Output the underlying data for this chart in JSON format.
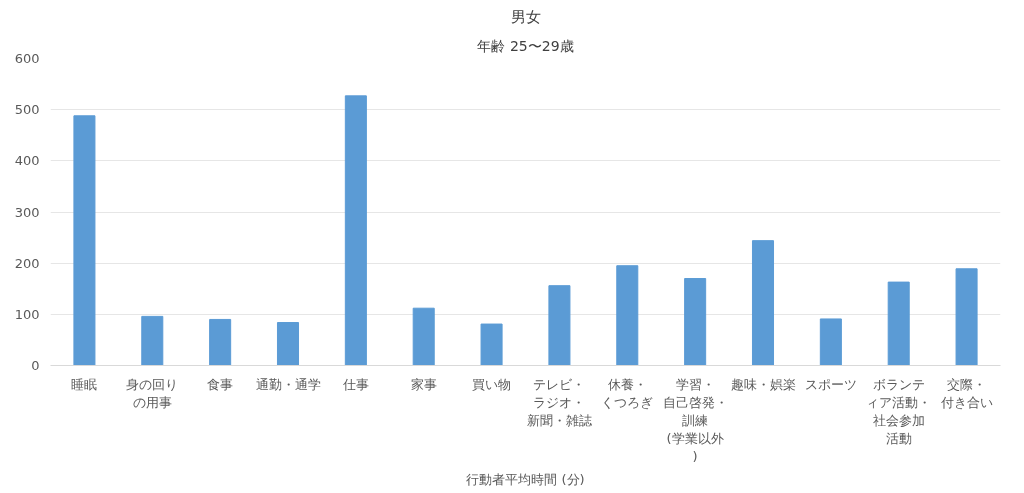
{
  "chart_data": {
    "type": "bar",
    "title": "男女",
    "subtitle": "年齢 25〜29歳",
    "xlabel": "行動者平均時間 (分)",
    "categories": [
      "睡眠",
      "身の回りの用事",
      "食事",
      "通勤・通学",
      "仕事",
      "家事",
      "買い物",
      "テレビ・ラジオ・新聞・雑誌",
      "休養・くつろぎ",
      "学習・自己啓発・訓練(学業以外)",
      "趣味・娯楽",
      "スポーツ",
      "ボランティア活動・社会参加活動",
      "交際・付き合い"
    ],
    "values": [
      488,
      96,
      90,
      84,
      527,
      112,
      81,
      156,
      195,
      170,
      244,
      91,
      163,
      189
    ],
    "color": "#5b9bd5",
    "ylim": [
      0,
      600
    ],
    "yticks": [
      0,
      100,
      200,
      300,
      400,
      500,
      600
    ],
    "grid": "y"
  }
}
